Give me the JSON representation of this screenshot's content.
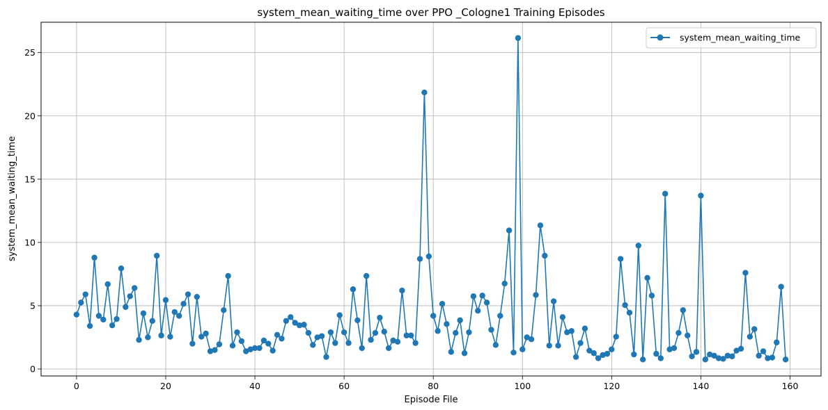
{
  "chart_data": {
    "type": "line",
    "title": "system_mean_waiting_time over PPO _Cologne1 Training Episodes",
    "xlabel": "Episode File",
    "ylabel": "system_mean_waiting_time",
    "xlim": [
      -7.95,
      166.95
    ],
    "ylim": [
      -0.55,
      27.4
    ],
    "xticks": [
      0,
      20,
      40,
      60,
      80,
      100,
      120,
      140,
      160
    ],
    "yticks": [
      0,
      5,
      10,
      15,
      20,
      25
    ],
    "grid": true,
    "legend_position": "top-right",
    "color": "#1f77b4",
    "series": [
      {
        "name": "system_mean_waiting_time",
        "x": [
          0,
          1,
          2,
          3,
          4,
          5,
          6,
          7,
          8,
          9,
          10,
          11,
          12,
          13,
          14,
          15,
          16,
          17,
          18,
          19,
          20,
          21,
          22,
          23,
          24,
          25,
          26,
          27,
          28,
          29,
          30,
          31,
          32,
          33,
          34,
          35,
          36,
          37,
          38,
          39,
          40,
          41,
          42,
          43,
          44,
          45,
          46,
          47,
          48,
          49,
          50,
          51,
          52,
          53,
          54,
          55,
          56,
          57,
          58,
          59,
          60,
          61,
          62,
          63,
          64,
          65,
          66,
          67,
          68,
          69,
          70,
          71,
          72,
          73,
          74,
          75,
          76,
          77,
          78,
          79,
          80,
          81,
          82,
          83,
          84,
          85,
          86,
          87,
          88,
          89,
          90,
          91,
          92,
          93,
          94,
          95,
          96,
          97,
          98,
          99,
          100,
          101,
          102,
          103,
          104,
          105,
          106,
          107,
          108,
          109,
          110,
          111,
          112,
          113,
          114,
          115,
          116,
          117,
          118,
          119,
          120,
          121,
          122,
          123,
          124,
          125,
          126,
          127,
          128,
          129,
          130,
          131,
          132,
          133,
          134,
          135,
          136,
          137,
          138,
          139,
          140,
          141,
          142,
          143,
          144,
          145,
          146,
          147,
          148,
          149,
          150,
          151,
          152,
          153,
          154,
          155,
          156,
          157,
          158,
          159
        ],
        "y": [
          4.3,
          5.25,
          5.9,
          3.4,
          8.8,
          4.2,
          3.9,
          6.7,
          3.45,
          3.95,
          7.95,
          4.9,
          5.75,
          6.4,
          2.3,
          4.4,
          2.5,
          3.8,
          8.95,
          2.65,
          5.45,
          2.55,
          4.5,
          4.2,
          5.15,
          5.9,
          2.0,
          5.7,
          2.55,
          2.8,
          1.4,
          1.5,
          1.95,
          4.65,
          7.35,
          1.85,
          2.9,
          2.2,
          1.4,
          1.55,
          1.65,
          1.65,
          2.25,
          2.0,
          1.45,
          2.7,
          2.4,
          3.8,
          4.1,
          3.65,
          3.45,
          3.5,
          2.85,
          1.9,
          2.5,
          2.6,
          0.95,
          2.9,
          2.05,
          4.25,
          2.9,
          2.05,
          6.3,
          3.85,
          1.65,
          7.35,
          2.3,
          2.85,
          4.05,
          2.95,
          1.65,
          2.25,
          2.15,
          6.2,
          2.65,
          2.65,
          2.05,
          8.7,
          21.85,
          8.9,
          4.2,
          3.0,
          5.15,
          3.55,
          1.35,
          2.85,
          3.85,
          1.25,
          2.9,
          5.75,
          4.6,
          5.8,
          5.25,
          3.1,
          1.9,
          4.2,
          6.75,
          10.95,
          1.3,
          26.15,
          1.55,
          2.5,
          2.35,
          5.85,
          11.35,
          8.95,
          1.85,
          5.35,
          1.85,
          4.1,
          2.9,
          3.0,
          0.95,
          2.05,
          3.2,
          1.45,
          1.25,
          0.85,
          1.1,
          1.2,
          1.55,
          2.55,
          8.7,
          5.05,
          4.45,
          1.15,
          9.75,
          0.75,
          7.2,
          5.8,
          1.2,
          0.85,
          13.85,
          1.55,
          1.65,
          2.85,
          4.65,
          2.65,
          1.0,
          1.35,
          13.7,
          0.75,
          1.15,
          1.05,
          0.85,
          0.8,
          1.05,
          1.0,
          1.45,
          1.6,
          7.6,
          2.55,
          3.15,
          1.05,
          1.4,
          0.85,
          0.9,
          2.1,
          6.5,
          0.75
        ]
      }
    ]
  }
}
